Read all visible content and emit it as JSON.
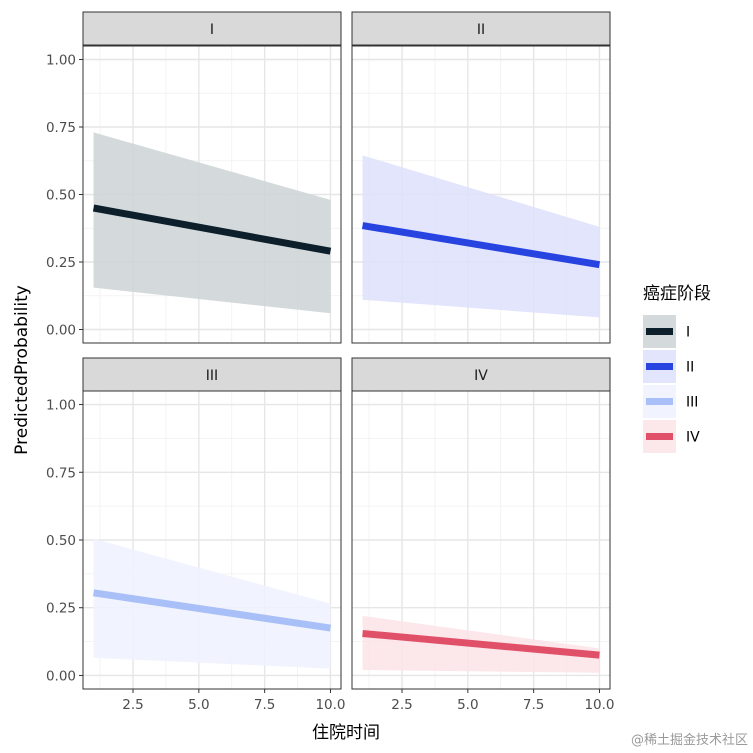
{
  "chart_data": {
    "type": "line",
    "xlabel": "住院时间",
    "ylabel": "PredictedProbability",
    "xlim": [
      0.6,
      10.4
    ],
    "ylim": [
      -0.05,
      1.05
    ],
    "x_ticks": [
      2.5,
      5.0,
      7.5,
      10.0
    ],
    "x_tick_labels": [
      "2.5",
      "5.0",
      "7.5",
      "10.0"
    ],
    "y_ticks": [
      0.0,
      0.25,
      0.5,
      0.75,
      1.0
    ],
    "y_tick_labels": [
      "0.00",
      "0.25",
      "0.50",
      "0.75",
      "1.00"
    ],
    "grid": true,
    "legend": {
      "title": "癌症阶段",
      "placement": "right",
      "entries": [
        "I",
        "II",
        "III",
        "IV"
      ]
    },
    "facets": [
      {
        "label": "I",
        "series": "I",
        "color": "#0c1f2b",
        "fill": "#cdd4d6",
        "x": [
          1,
          10
        ],
        "y": [
          0.45,
          0.29
        ],
        "ribbon_x": [
          1,
          10
        ],
        "ribbon_upper": [
          0.73,
          0.48
        ],
        "ribbon_lower": [
          0.155,
          0.06
        ]
      },
      {
        "label": "II",
        "series": "II",
        "color": "#2743e0",
        "fill": "#dde1fb",
        "x": [
          1,
          10
        ],
        "y": [
          0.385,
          0.24
        ],
        "ribbon_x": [
          1,
          10
        ],
        "ribbon_upper": [
          0.645,
          0.38
        ],
        "ribbon_lower": [
          0.11,
          0.045
        ]
      },
      {
        "label": "III",
        "series": "III",
        "color": "#a8bff7",
        "fill": "#eef2fe",
        "x": [
          1,
          10
        ],
        "y": [
          0.305,
          0.175
        ],
        "ribbon_x": [
          1,
          10
        ],
        "ribbon_upper": [
          0.505,
          0.265
        ],
        "ribbon_lower": [
          0.065,
          0.025
        ]
      },
      {
        "label": "IV",
        "series": "IV",
        "color": "#e05068",
        "fill": "#fbe3e7",
        "x": [
          1,
          10
        ],
        "y": [
          0.155,
          0.075
        ],
        "ribbon_x": [
          1,
          10
        ],
        "ribbon_upper": [
          0.22,
          0.1
        ],
        "ribbon_lower": [
          0.02,
          0.01
        ]
      }
    ]
  },
  "watermark": "@稀土掘金技术社区"
}
